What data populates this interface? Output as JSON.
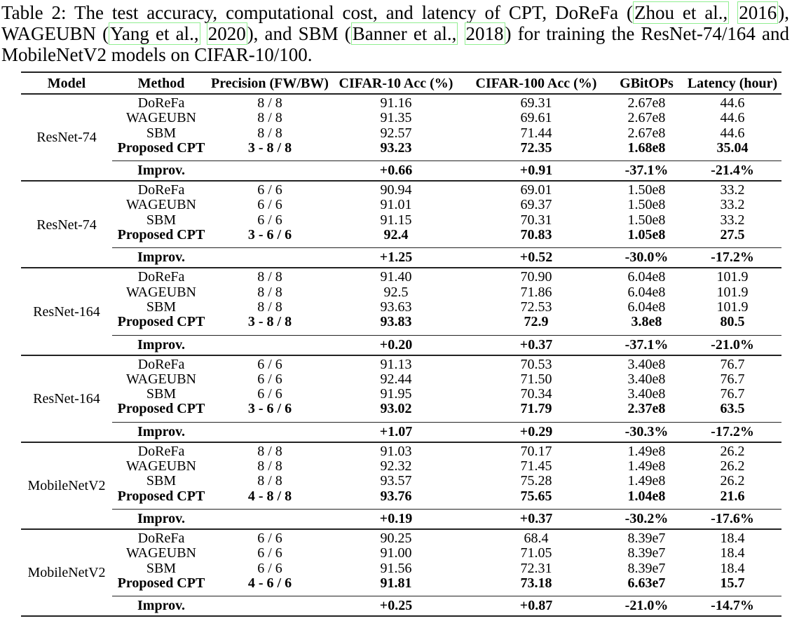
{
  "colors": {
    "citation_box_green": "#90EE90",
    "rule_color": "#222222",
    "text_color": "#000000"
  },
  "caption": {
    "lines": [
      {
        "justify": true,
        "segments": [
          {
            "text": "Table 2: The test accuracy, computational cost, and latency of CPT, DoReFa (",
            "boxed": false
          },
          {
            "text": "Zhou et al.,",
            "boxed": true
          },
          {
            "text": " ",
            "boxed": false
          },
          {
            "text": "2016",
            "boxed": true
          },
          {
            "text": "),",
            "boxed": false
          }
        ]
      },
      {
        "justify": true,
        "segments": [
          {
            "text": "WAGEUBN (",
            "boxed": false
          },
          {
            "text": "Yang et al.,",
            "boxed": true
          },
          {
            "text": " ",
            "boxed": false
          },
          {
            "text": "2020",
            "boxed": true
          },
          {
            "text": "), and SBM (",
            "boxed": false
          },
          {
            "text": "Banner et al.,",
            "boxed": true
          },
          {
            "text": " ",
            "boxed": false
          },
          {
            "text": "2018",
            "boxed": true
          },
          {
            "text": ") for training the ResNet-74/164 and",
            "boxed": false
          }
        ]
      },
      {
        "justify": false,
        "segments": [
          {
            "text": "MobileNetV2 models on CIFAR-10/100.",
            "boxed": false
          }
        ]
      }
    ]
  },
  "table": {
    "headers": [
      "Model",
      "Method",
      "Precision (FW/BW)",
      "CIFAR-10 Acc (%)",
      "CIFAR-100 Acc (%)",
      "GBitOPs",
      "Latency (hour)"
    ],
    "blocks": [
      {
        "model": "ResNet-74",
        "rows": [
          {
            "method": "DoReFa",
            "precision": "8 / 8",
            "cifar10": "91.16",
            "cifar100": "69.31",
            "gbitops": "2.67e8",
            "latency": "44.6",
            "bold": false
          },
          {
            "method": "WAGEUBN",
            "precision": "8 / 8",
            "cifar10": "91.35",
            "cifar100": "69.61",
            "gbitops": "2.67e8",
            "latency": "44.6",
            "bold": false
          },
          {
            "method": "SBM",
            "precision": "8 / 8",
            "cifar10": "92.57",
            "cifar100": "71.44",
            "gbitops": "2.67e8",
            "latency": "44.6",
            "bold": false
          },
          {
            "method": "Proposed CPT",
            "precision": "3 - 8 / 8",
            "cifar10": "93.23",
            "cifar100": "72.35",
            "gbitops": "1.68e8",
            "latency": "35.04",
            "bold": true
          }
        ],
        "improv": {
          "label": "Improv.",
          "precision": "",
          "cifar10": "+0.66",
          "cifar100": "+0.91",
          "gbitops": "-37.1%",
          "latency": "-21.4%"
        }
      },
      {
        "model": "ResNet-74",
        "rows": [
          {
            "method": "DoReFa",
            "precision": "6 / 6",
            "cifar10": "90.94",
            "cifar100": "69.01",
            "gbitops": "1.50e8",
            "latency": "33.2",
            "bold": false
          },
          {
            "method": "WAGEUBN",
            "precision": "6 / 6",
            "cifar10": "91.01",
            "cifar100": "69.37",
            "gbitops": "1.50e8",
            "latency": "33.2",
            "bold": false
          },
          {
            "method": "SBM",
            "precision": "6 / 6",
            "cifar10": "91.15",
            "cifar100": "70.31",
            "gbitops": "1.50e8",
            "latency": "33.2",
            "bold": false
          },
          {
            "method": "Proposed CPT",
            "precision": "3 - 6 / 6",
            "cifar10": "92.4",
            "cifar100": "70.83",
            "gbitops": "1.05e8",
            "latency": "27.5",
            "bold": true
          }
        ],
        "improv": {
          "label": "Improv.",
          "precision": "",
          "cifar10": "+1.25",
          "cifar100": "+0.52",
          "gbitops": "-30.0%",
          "latency": "-17.2%"
        }
      },
      {
        "model": "ResNet-164",
        "rows": [
          {
            "method": "DoReFa",
            "precision": "8 / 8",
            "cifar10": "91.40",
            "cifar100": "70.90",
            "gbitops": "6.04e8",
            "latency": "101.9",
            "bold": false
          },
          {
            "method": "WAGEUBN",
            "precision": "8 / 8",
            "cifar10": "92.5",
            "cifar100": "71.86",
            "gbitops": "6.04e8",
            "latency": "101.9",
            "bold": false
          },
          {
            "method": "SBM",
            "precision": "8 / 8",
            "cifar10": "93.63",
            "cifar100": "72.53",
            "gbitops": "6.04e8",
            "latency": "101.9",
            "bold": false
          },
          {
            "method": "Proposed CPT",
            "precision": "3 - 8 / 8",
            "cifar10": "93.83",
            "cifar100": "72.9",
            "gbitops": "3.8e8",
            "latency": "80.5",
            "bold": true
          }
        ],
        "improv": {
          "label": "Improv.",
          "precision": "",
          "cifar10": "+0.20",
          "cifar100": "+0.37",
          "gbitops": "-37.1%",
          "latency": "-21.0%"
        }
      },
      {
        "model": "ResNet-164",
        "rows": [
          {
            "method": "DoReFa",
            "precision": "6 / 6",
            "cifar10": "91.13",
            "cifar100": "70.53",
            "gbitops": "3.40e8",
            "latency": "76.7",
            "bold": false
          },
          {
            "method": "WAGEUBN",
            "precision": "6 / 6",
            "cifar10": "92.44",
            "cifar100": "71.50",
            "gbitops": "3.40e8",
            "latency": "76.7",
            "bold": false
          },
          {
            "method": "SBM",
            "precision": "6 / 6",
            "cifar10": "91.95",
            "cifar100": "70.34",
            "gbitops": "3.40e8",
            "latency": "76.7",
            "bold": false
          },
          {
            "method": "Proposed CPT",
            "precision": "3 - 6 / 6",
            "cifar10": "93.02",
            "cifar100": "71.79",
            "gbitops": "2.37e8",
            "latency": "63.5",
            "bold": true
          }
        ],
        "improv": {
          "label": "Improv.",
          "precision": "",
          "cifar10": "+1.07",
          "cifar100": "+0.29",
          "gbitops": "-30.3%",
          "latency": "-17.2%"
        }
      },
      {
        "model": "MobileNetV2",
        "rows": [
          {
            "method": "DoReFa",
            "precision": "8 / 8",
            "cifar10": "91.03",
            "cifar100": "70.17",
            "gbitops": "1.49e8",
            "latency": "26.2",
            "bold": false
          },
          {
            "method": "WAGEUBN",
            "precision": "8 / 8",
            "cifar10": "92.32",
            "cifar100": "71.45",
            "gbitops": "1.49e8",
            "latency": "26.2",
            "bold": false
          },
          {
            "method": "SBM",
            "precision": "8 / 8",
            "cifar10": "93.57",
            "cifar100": "75.28",
            "gbitops": "1.49e8",
            "latency": "26.2",
            "bold": false
          },
          {
            "method": "Proposed CPT",
            "precision": "4 - 8 / 8",
            "cifar10": "93.76",
            "cifar100": "75.65",
            "gbitops": "1.04e8",
            "latency": "21.6",
            "bold": true
          }
        ],
        "improv": {
          "label": "Improv.",
          "precision": "",
          "cifar10": "+0.19",
          "cifar100": "+0.37",
          "gbitops": "-30.2%",
          "latency": "-17.6%"
        }
      },
      {
        "model": "MobileNetV2",
        "rows": [
          {
            "method": "DoReFa",
            "precision": "6 / 6",
            "cifar10": "90.25",
            "cifar100": "68.4",
            "gbitops": "8.39e7",
            "latency": "18.4",
            "bold": false
          },
          {
            "method": "WAGEUBN",
            "precision": "6 / 6",
            "cifar10": "91.00",
            "cifar100": "71.05",
            "gbitops": "8.39e7",
            "latency": "18.4",
            "bold": false
          },
          {
            "method": "SBM",
            "precision": "6 / 6",
            "cifar10": "91.56",
            "cifar100": "72.31",
            "gbitops": "8.39e7",
            "latency": "18.4",
            "bold": false
          },
          {
            "method": "Proposed CPT",
            "precision": "4 - 6 / 6",
            "cifar10": "91.81",
            "cifar100": "73.18",
            "gbitops": "6.63e7",
            "latency": "15.7",
            "bold": true
          }
        ],
        "improv": {
          "label": "Improv.",
          "precision": "",
          "cifar10": "+0.25",
          "cifar100": "+0.87",
          "gbitops": "-21.0%",
          "latency": "-14.7%"
        }
      }
    ]
  }
}
